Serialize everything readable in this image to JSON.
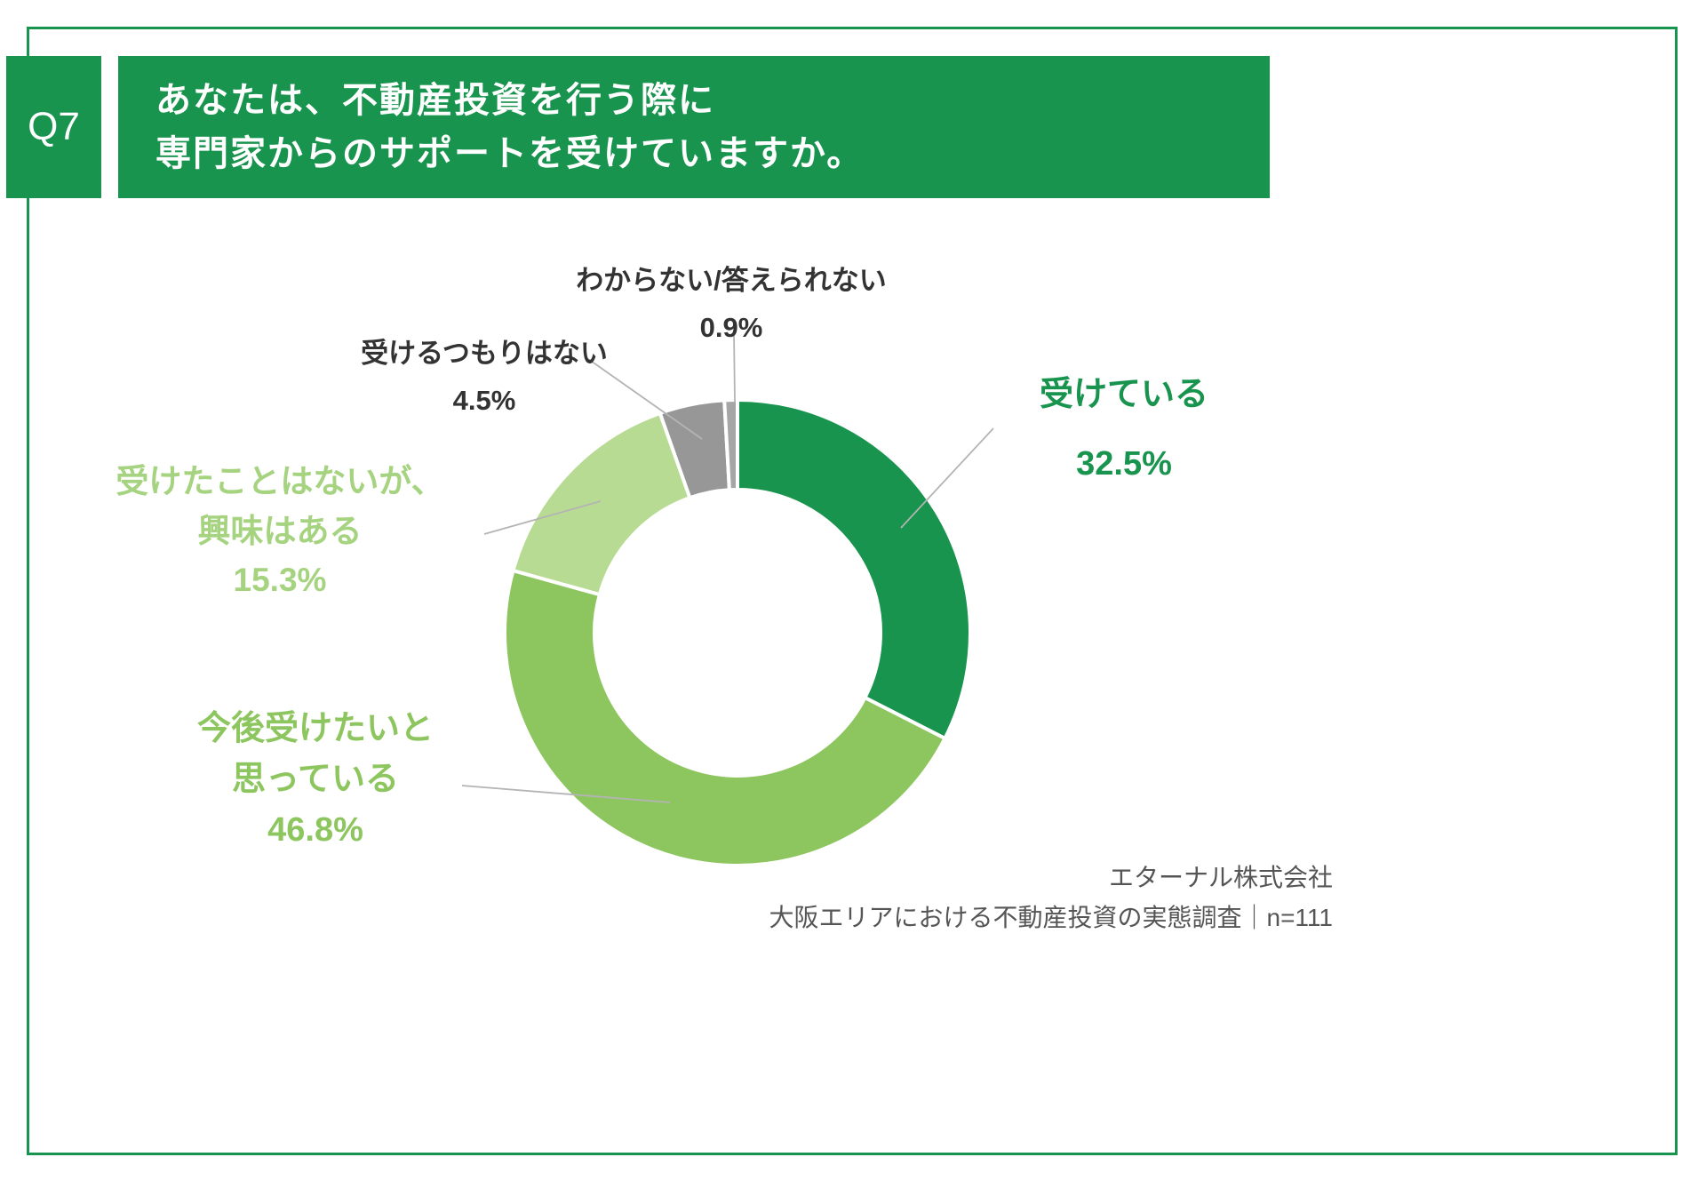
{
  "header": {
    "q_label": "Q7",
    "title_line1": "あなたは、不動産投資を行う際に",
    "title_line2": "専門家からのサポートを受けていますか。"
  },
  "colors": {
    "brand_green": "#18944e",
    "mid_green": "#8dc55f",
    "light_green": "#b8db93",
    "gray": "#979797",
    "gray_light": "#a6a6a6",
    "text_dark": "#333333",
    "footer_gray": "#555555"
  },
  "chart_data": {
    "type": "pie",
    "donut": true,
    "title": "あなたは、不動産投資を行う際に専門家からのサポートを受けていますか。",
    "start_angle_deg": -90,
    "direction": "clockwise",
    "unit": "%",
    "segments": [
      {
        "label": "受けている",
        "value": 32.5,
        "color": "#18944e"
      },
      {
        "label": "今後受けたいと思っている",
        "value": 46.8,
        "color": "#8dc55f"
      },
      {
        "label": "受けたことはないが、興味はある",
        "value": 15.3,
        "color": "#b8db93"
      },
      {
        "label": "受けるつもりはない",
        "value": 4.5,
        "color": "#979797"
      },
      {
        "label": "わからない/答えられない",
        "value": 0.9,
        "color": "#a6a6a6"
      }
    ]
  },
  "callouts": {
    "ukeiteiru": {
      "line1": "受けている",
      "pct": "32.5%"
    },
    "wakaranai": {
      "line1": "わからない/答えられない",
      "pct": "0.9%"
    },
    "ukeru_tsumori": {
      "line1": "受けるつもりはない",
      "pct": "4.5%"
    },
    "uketakoto": {
      "line1": "受けたことはないが、",
      "line2": "興味はある",
      "pct": "15.3%"
    },
    "kongo": {
      "line1": "今後受けたいと",
      "line2": "思っている",
      "pct": "46.8%"
    }
  },
  "footer": {
    "company": "エターナル株式会社",
    "survey": "大阪エリアにおける不動産投資の実態調査｜n=111"
  }
}
